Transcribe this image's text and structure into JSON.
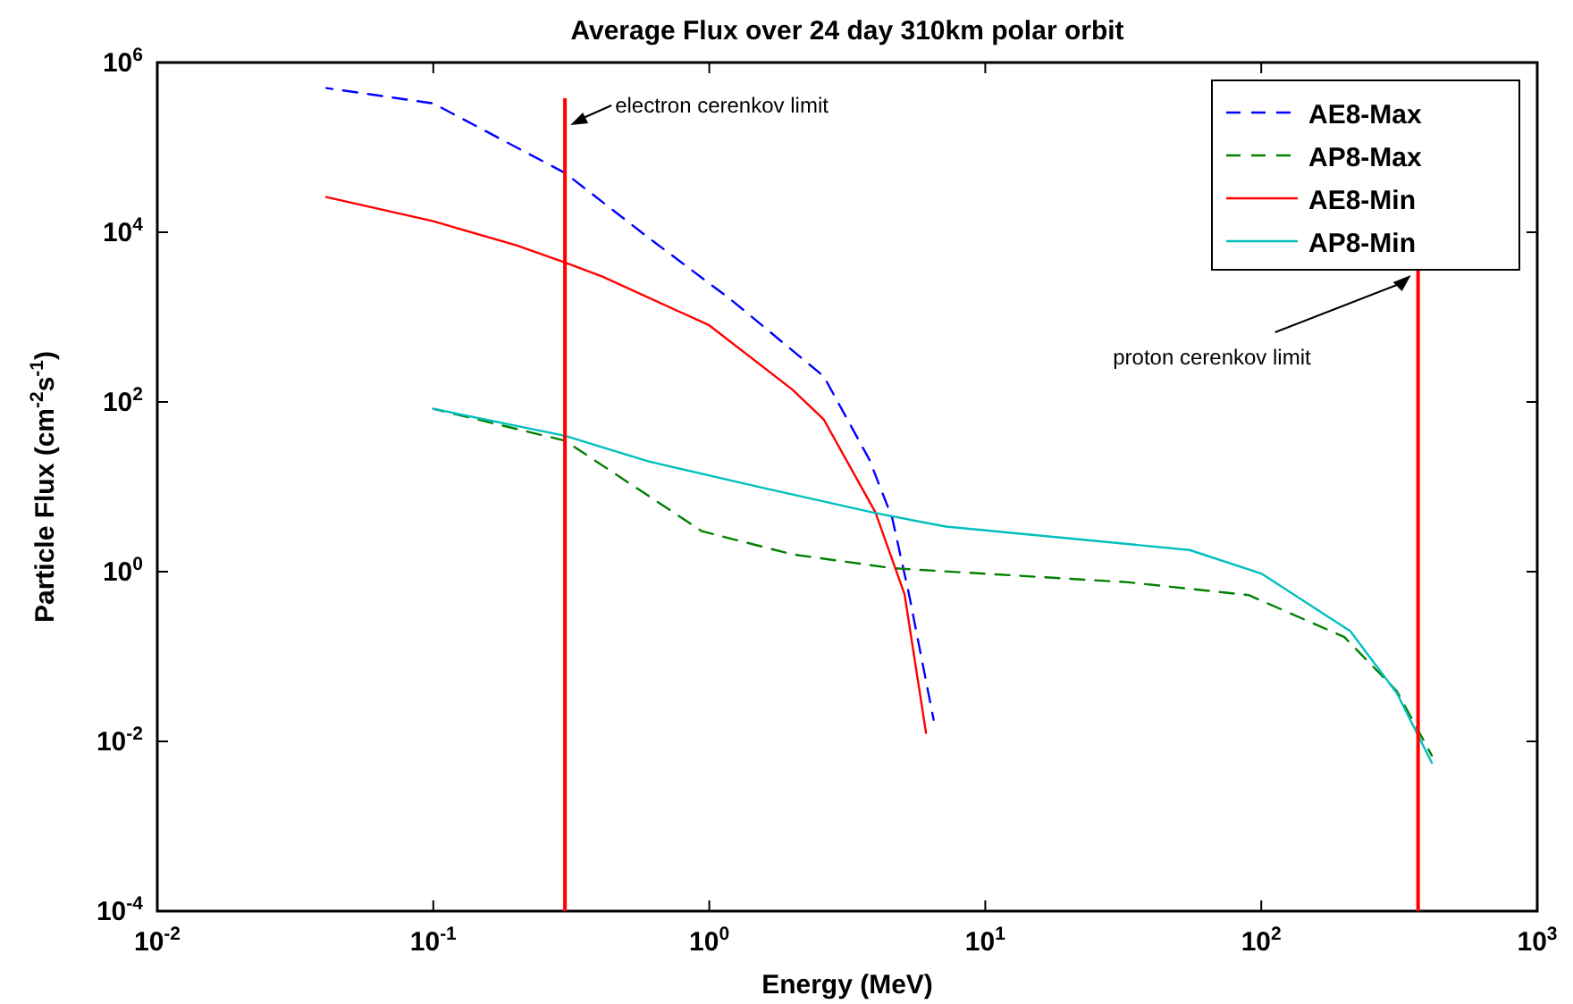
{
  "chart_data": {
    "type": "line",
    "title": "Average Flux over 24 day 310km polar orbit",
    "xlabel": "Energy (MeV)",
    "ylabel": "Particle Flux (cm$^{-2}$s$^{-1}$)",
    "log": "xy",
    "grid": false,
    "legend": "top right",
    "xlim": [
      0.01,
      1000
    ],
    "xticks": [
      {
        "value": 0.01,
        "label": "10$^{-2}$"
      },
      {
        "value": 0.1,
        "label": "10$^{-1}$"
      },
      {
        "value": 1,
        "label": "10$^{0}$"
      },
      {
        "value": 10,
        "label": "10$^{1}$"
      },
      {
        "value": 100,
        "label": "10$^{2}$"
      },
      {
        "value": 1000,
        "label": "10$^{3}$"
      }
    ],
    "ylim": [
      0.0001,
      1000000
    ],
    "yticks": [
      {
        "value": 0.0001,
        "label": "10$^{-4}$"
      },
      {
        "value": 0.01,
        "label": "10$^{-2}$"
      },
      {
        "value": 1,
        "label": "10$^{0}$"
      },
      {
        "value": 100,
        "label": "10$^{2}$"
      },
      {
        "value": 10000,
        "label": "10$^{4}$"
      },
      {
        "value": 1000000,
        "label": "10$^{6}$"
      }
    ],
    "series": [
      {
        "name": "AE8-Max",
        "color": "#0000ff",
        "line_style": "dashed",
        "x": [
          0.041,
          0.1,
          0.18,
          0.3,
          0.6,
          1.2,
          2.6,
          3.8,
          4.6,
          5.3,
          6.5
        ],
        "values": [
          500000,
          330000,
          120000,
          50000,
          8700,
          1600,
          200,
          21,
          4.3,
          0.53,
          0.018
        ]
      },
      {
        "name": "AP8-Max",
        "color": "#008000",
        "line_style": "dashed",
        "x": [
          0.1,
          0.3,
          0.94,
          2.0,
          4.6,
          33,
          90,
          200,
          310,
          415
        ],
        "values": [
          83,
          35,
          3,
          1.6,
          1.1,
          0.75,
          0.53,
          0.17,
          0.039,
          0.0068
        ]
      },
      {
        "name": "AE8-Min",
        "color": "#ff0000",
        "line_style": "solid",
        "x": [
          0.041,
          0.1,
          0.2,
          0.3,
          0.41,
          1,
          2.0,
          2.6,
          4.0,
          5.1,
          6.1
        ],
        "values": [
          26000,
          13500,
          7000,
          4400,
          3000,
          800,
          140,
          62,
          5,
          0.54,
          0.0126
        ]
      },
      {
        "name": "AP8-Min",
        "color": "#00bfbf",
        "line_style": "solid",
        "x": [
          0.1,
          0.3,
          0.6,
          1.55,
          4.0,
          7.2,
          55,
          100,
          210,
          310,
          415
        ],
        "values": [
          83,
          40,
          20,
          9.8,
          4.9,
          3.4,
          1.8,
          0.95,
          0.2,
          0.037,
          0.0056
        ]
      }
    ],
    "ref_lines": [
      {
        "axis": "x",
        "value": 0.3,
        "label": "electron cerenkov limit",
        "color": "#ff0000"
      },
      {
        "axis": "x",
        "value": 370,
        "label": "proton cerenkov limit",
        "color": "#ff0000"
      }
    ]
  }
}
